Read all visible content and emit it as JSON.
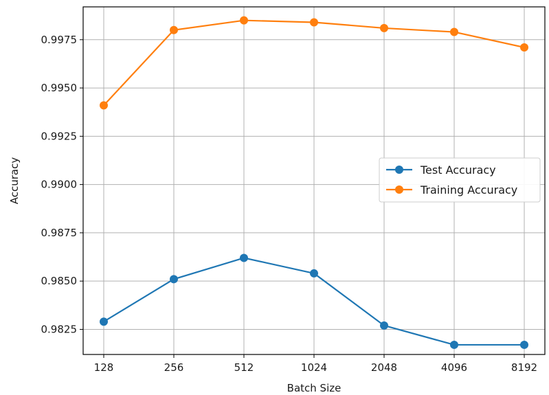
{
  "chart_data": {
    "type": "line",
    "xlabel": "Batch Size",
    "ylabel": "Accuracy",
    "categories": [
      "128",
      "256",
      "512",
      "1024",
      "2048",
      "4096",
      "8192"
    ],
    "ylim": [
      0.9812,
      0.9992
    ],
    "yticks": [
      "0.9825",
      "0.9850",
      "0.9875",
      "0.9900",
      "0.9925",
      "0.9950",
      "0.9975"
    ],
    "grid": true,
    "legend_position": "center-right",
    "series": [
      {
        "name": "Test Accuracy",
        "color": "#1f77b4",
        "marker": "circle",
        "values": [
          0.9829,
          0.9851,
          0.9862,
          0.9854,
          0.9827,
          0.9817,
          0.9817
        ]
      },
      {
        "name": "Training Accuracy",
        "color": "#ff7f0e",
        "marker": "circle",
        "values": [
          0.9941,
          0.998,
          0.9985,
          0.9984,
          0.9981,
          0.9979,
          0.9971
        ]
      }
    ]
  }
}
